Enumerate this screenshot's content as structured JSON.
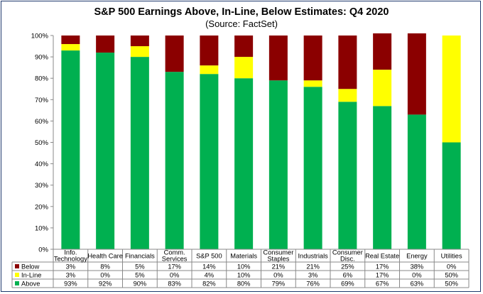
{
  "chart_data": {
    "type": "bar",
    "stacked": true,
    "title": "S&P 500 Earnings Above, In-Line, Below Estimates: Q4 2020",
    "subtitle": "(Source: FactSet)",
    "categories": [
      [
        "Info.",
        "Technology"
      ],
      [
        "Health Care"
      ],
      [
        "Financials"
      ],
      [
        "Comm.",
        "Services"
      ],
      [
        "S&P 500"
      ],
      [
        "Materials"
      ],
      [
        "Consumer",
        "Staples"
      ],
      [
        "Industrials"
      ],
      [
        "Consumer",
        "Disc."
      ],
      [
        "Real Estate"
      ],
      [
        "Energy"
      ],
      [
        "Utilities"
      ]
    ],
    "yticks": [
      "0%",
      "10%",
      "20%",
      "30%",
      "40%",
      "50%",
      "60%",
      "70%",
      "80%",
      "90%",
      "100%"
    ],
    "ylim": [
      0,
      100
    ],
    "grid": false,
    "series": [
      {
        "name": "Below",
        "color": "#8b0000",
        "values": [
          3,
          8,
          5,
          17,
          14,
          10,
          21,
          21,
          25,
          17,
          38,
          0
        ],
        "labels": [
          "3%",
          "8%",
          "5%",
          "17%",
          "14%",
          "10%",
          "21%",
          "21%",
          "25%",
          "17%",
          "38%",
          "0%"
        ]
      },
      {
        "name": "In-Line",
        "color": "#ffff00",
        "values": [
          3,
          0,
          5,
          0,
          4,
          10,
          0,
          3,
          6,
          17,
          0,
          50
        ],
        "labels": [
          "3%",
          "0%",
          "5%",
          "0%",
          "4%",
          "10%",
          "0%",
          "3%",
          "6%",
          "17%",
          "0%",
          "50%"
        ]
      },
      {
        "name": "Above",
        "color": "#00b050",
        "values": [
          93,
          92,
          90,
          83,
          82,
          80,
          79,
          76,
          69,
          67,
          63,
          50
        ],
        "labels": [
          "93%",
          "92%",
          "90%",
          "83%",
          "82%",
          "80%",
          "79%",
          "76%",
          "69%",
          "67%",
          "63%",
          "50%"
        ]
      }
    ],
    "legend": "data-table-below"
  }
}
